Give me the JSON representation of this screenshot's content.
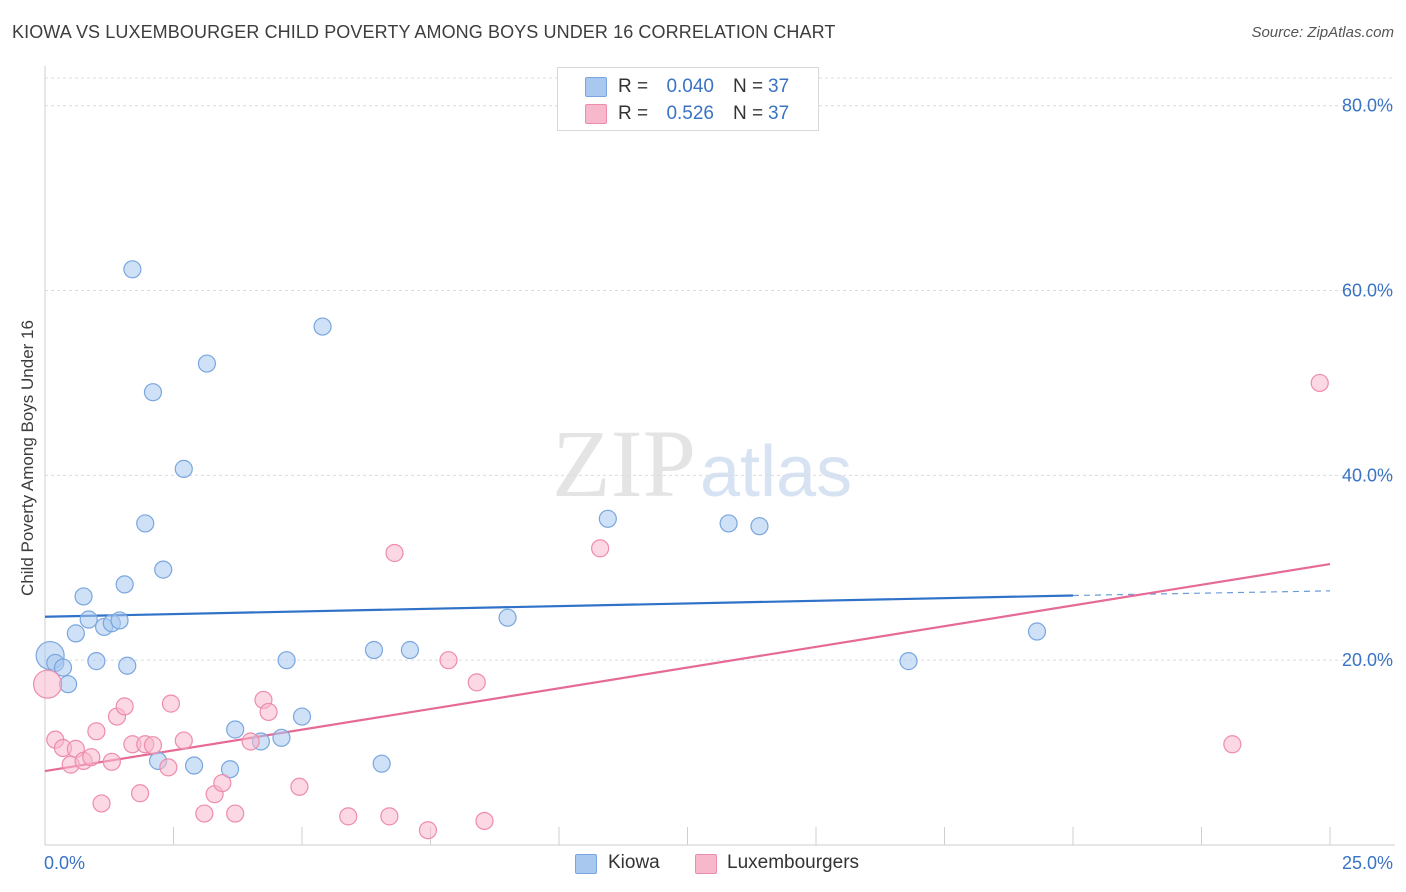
{
  "title": "KIOWA VS LUXEMBOURGER CHILD POVERTY AMONG BOYS UNDER 16 CORRELATION CHART",
  "source": "Source: ZipAtlas.com",
  "watermark": {
    "zip": "ZIP",
    "atlas": "atlas"
  },
  "stats": {
    "rows": [
      {
        "r_label": "R =",
        "r_value": "0.040",
        "n_label": "N =",
        "n_value": "37",
        "color": "#a8c8f0"
      },
      {
        "r_label": "R =",
        "r_value": "0.526",
        "n_label": "N =",
        "n_value": "37",
        "color": "#f7b8cc"
      }
    ]
  },
  "legend": {
    "items": [
      {
        "label": "Kiowa",
        "color": "#a8c8f0"
      },
      {
        "label": "Luxembourgers",
        "color": "#f7b8cc"
      }
    ]
  },
  "chart_data": {
    "type": "scatter",
    "title": "KIOWA VS LUXEMBOURGER CHILD POVERTY AMONG BOYS UNDER 16 CORRELATION CHART",
    "xlabel": "",
    "ylabel": "Child Poverty Among Boys Under 16",
    "xlim": [
      0,
      25
    ],
    "ylim": [
      0,
      83
    ],
    "x_tick_labels": [
      {
        "value": 0,
        "label": "0.0%"
      },
      {
        "value": 25,
        "label": "25.0%"
      }
    ],
    "x_minor_ticks": [
      2.5,
      5,
      7.5,
      10,
      12.5,
      15,
      17.5,
      20,
      22.5,
      25
    ],
    "y_ticks": [
      {
        "value": 20,
        "label": "20.0%"
      },
      {
        "value": 40,
        "label": "40.0%"
      },
      {
        "value": 60,
        "label": "60.0%"
      },
      {
        "value": 80,
        "label": "80.0%"
      }
    ],
    "grid": true,
    "series": [
      {
        "name": "Kiowa",
        "color": "#a8c8f0",
        "stroke": "#7aa6de",
        "line_color": "#2f72c8",
        "trend": {
          "x0": 0,
          "y0": 24.7,
          "x1": 20,
          "y1": 27.0,
          "dash_to_x": 25,
          "dash_to_y": 27.5
        },
        "points": [
          [
            0.1,
            20.5
          ],
          [
            0.2,
            19.7
          ],
          [
            0.35,
            19.2
          ],
          [
            0.45,
            17.4
          ],
          [
            0.6,
            22.9
          ],
          [
            0.75,
            26.9
          ],
          [
            0.85,
            24.4
          ],
          [
            1.0,
            19.9
          ],
          [
            1.15,
            23.6
          ],
          [
            1.3,
            24.0
          ],
          [
            1.45,
            24.3
          ],
          [
            1.55,
            28.2
          ],
          [
            1.6,
            19.4
          ],
          [
            1.7,
            62.3
          ],
          [
            1.95,
            34.8
          ],
          [
            2.1,
            49.0
          ],
          [
            2.2,
            9.1
          ],
          [
            2.3,
            29.8
          ],
          [
            2.7,
            40.7
          ],
          [
            2.9,
            8.6
          ],
          [
            3.15,
            52.1
          ],
          [
            3.6,
            8.2
          ],
          [
            3.7,
            12.5
          ],
          [
            4.2,
            11.2
          ],
          [
            4.6,
            11.6
          ],
          [
            4.7,
            20.0
          ],
          [
            5.0,
            13.9
          ],
          [
            5.4,
            56.1
          ],
          [
            6.4,
            21.1
          ],
          [
            6.55,
            8.8
          ],
          [
            7.1,
            21.1
          ],
          [
            9.0,
            24.6
          ],
          [
            10.95,
            35.3
          ],
          [
            13.3,
            34.8
          ],
          [
            13.9,
            34.5
          ],
          [
            16.8,
            19.9
          ],
          [
            19.3,
            23.1
          ]
        ]
      },
      {
        "name": "Luxembourgers",
        "color": "#f7b8cc",
        "stroke": "#ee8cac",
        "line_color": "#e66a97",
        "trend": {
          "x0": 0,
          "y0": 8.0,
          "x1": 25,
          "y1": 30.4
        },
        "points": [
          [
            0.05,
            17.4
          ],
          [
            0.2,
            11.4
          ],
          [
            0.35,
            10.5
          ],
          [
            0.5,
            8.7
          ],
          [
            0.6,
            10.4
          ],
          [
            0.75,
            9.1
          ],
          [
            0.9,
            9.5
          ],
          [
            1.0,
            12.3
          ],
          [
            1.1,
            4.5
          ],
          [
            1.3,
            9.0
          ],
          [
            1.4,
            13.9
          ],
          [
            1.55,
            15.0
          ],
          [
            1.7,
            10.9
          ],
          [
            1.85,
            5.6
          ],
          [
            1.95,
            10.9
          ],
          [
            2.1,
            10.8
          ],
          [
            2.4,
            8.4
          ],
          [
            2.45,
            15.3
          ],
          [
            2.7,
            11.3
          ],
          [
            3.1,
            3.4
          ],
          [
            3.3,
            5.5
          ],
          [
            3.45,
            6.7
          ],
          [
            3.7,
            3.4
          ],
          [
            4.0,
            11.2
          ],
          [
            4.25,
            15.7
          ],
          [
            4.35,
            14.4
          ],
          [
            4.95,
            6.3
          ],
          [
            5.9,
            3.1
          ],
          [
            6.8,
            31.6
          ],
          [
            6.7,
            3.1
          ],
          [
            7.45,
            1.6
          ],
          [
            7.85,
            20.0
          ],
          [
            8.4,
            17.6
          ],
          [
            8.55,
            2.6
          ],
          [
            10.8,
            32.1
          ],
          [
            23.1,
            10.9
          ],
          [
            24.8,
            50.0
          ]
        ]
      }
    ]
  }
}
